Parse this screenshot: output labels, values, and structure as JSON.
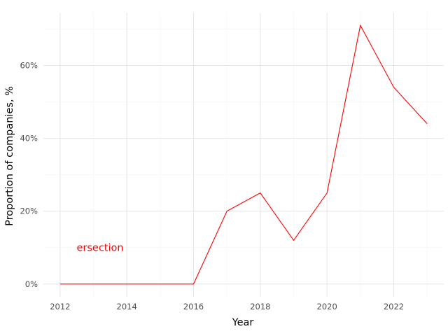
{
  "chart_data": {
    "type": "line",
    "xlabel": "Year",
    "ylabel": "Proportion of companies, %",
    "x": [
      2012,
      2013,
      2014,
      2015,
      2016,
      2017,
      2018,
      2019,
      2020,
      2021,
      2022,
      2023
    ],
    "series": [
      {
        "values": [
          0,
          0,
          0,
          0,
          0,
          20,
          25,
          12,
          25,
          71,
          54,
          44
        ],
        "color": "#ff0000"
      }
    ],
    "xlim": [
      2011.5,
      2023.5
    ],
    "ylim": [
      -3.5,
      74.5
    ],
    "x_ticks": [
      2012,
      2014,
      2016,
      2018,
      2020,
      2022
    ],
    "x_tick_labels": [
      "2012",
      "2014",
      "2016",
      "2018",
      "2020",
      "2022"
    ],
    "y_ticks": [
      0,
      20,
      40,
      60
    ],
    "y_tick_labels": [
      "0%",
      "20%",
      "40%",
      "60%"
    ],
    "grid": true,
    "annotations": [
      {
        "text": "ersection",
        "x": 2013.2,
        "y": 10,
        "color": "#ff0000"
      }
    ]
  }
}
